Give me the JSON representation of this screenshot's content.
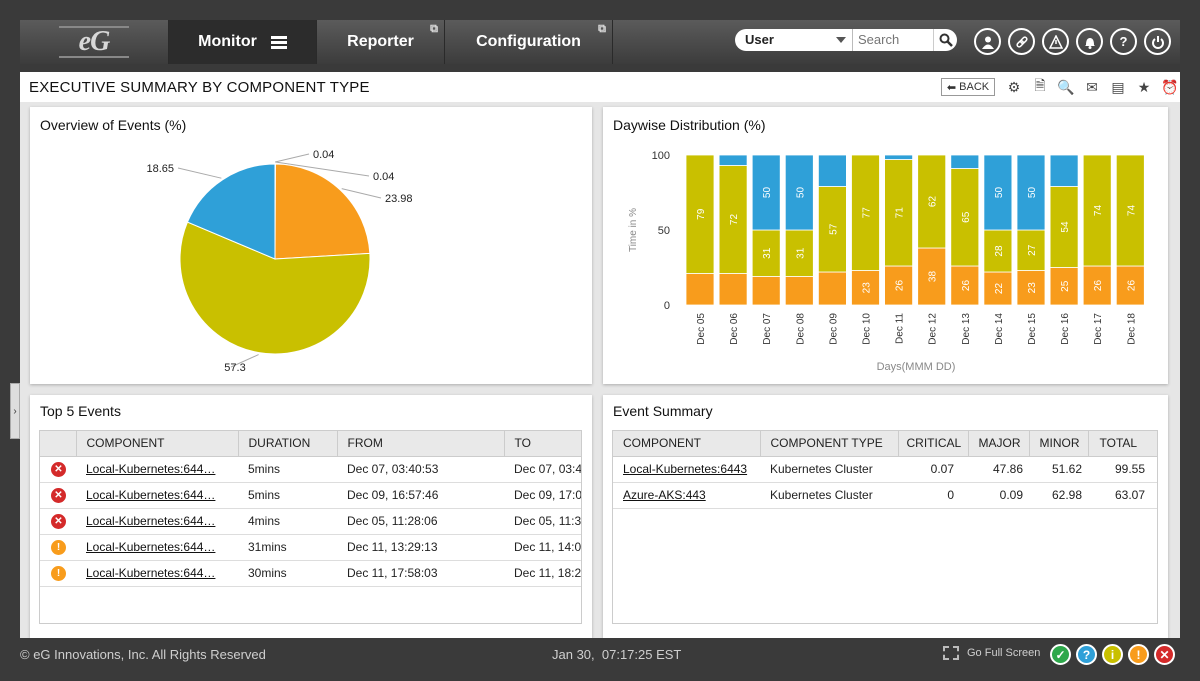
{
  "nav": {
    "logo_text": "eG",
    "tabs": [
      {
        "label": "Monitor"
      },
      {
        "label": "Reporter"
      },
      {
        "label": "Configuration"
      }
    ],
    "user_select": "User",
    "search_placeholder": "Search",
    "icons": [
      "user-icon",
      "link-icon",
      "alert-icon",
      "bell-icon",
      "help-icon",
      "power-icon"
    ]
  },
  "titlebar": {
    "title": "EXECUTIVE SUMMARY BY COMPONENT TYPE",
    "back_label": "BACK",
    "tools": [
      "settings-icon",
      "pdf-icon",
      "search-doc-icon",
      "mail-icon",
      "csv-icon",
      "star-icon",
      "alarm-icon"
    ]
  },
  "overview": {
    "title": "Overview of Events (%)",
    "chart_data": {
      "type": "pie",
      "slices": [
        {
          "label": "0.04",
          "value": 0.04,
          "color": "#d8d8d8"
        },
        {
          "label": "0.04",
          "value": 0.04,
          "color": "#cccccc"
        },
        {
          "label": "23.98",
          "value": 23.98,
          "color": "#f89c1c"
        },
        {
          "label": "57.3",
          "value": 57.3,
          "color": "#c9c000"
        },
        {
          "label": "18.65",
          "value": 18.65,
          "color": "#2fa0d8"
        }
      ]
    }
  },
  "daywise": {
    "title": "Daywise Distribution (%)",
    "chart_data": {
      "type": "bar",
      "stacked": true,
      "ylabel": "Time in %",
      "xlabel": "Days(MMM DD)",
      "ylim": [
        0,
        100
      ],
      "yticks": [
        "0",
        "50",
        "100"
      ],
      "categories": [
        "Dec 05",
        "Dec 06",
        "Dec 07",
        "Dec 08",
        "Dec 09",
        "Dec 10",
        "Dec 11",
        "Dec 12",
        "Dec 13",
        "Dec 14",
        "Dec 15",
        "Dec 16",
        "Dec 17",
        "Dec 18"
      ],
      "series": [
        {
          "color": "#f89c1c",
          "values": [
            21,
            21,
            19,
            19,
            22,
            23,
            26,
            38,
            26,
            22,
            23,
            25,
            26,
            26
          ],
          "labels": [
            "",
            "",
            "",
            "",
            "",
            "23",
            "26",
            "38",
            "26",
            "22",
            "23",
            "25",
            "26",
            "26"
          ]
        },
        {
          "color": "#c9c000",
          "values": [
            79,
            72,
            31,
            31,
            57,
            77,
            71,
            62,
            65,
            28,
            27,
            54,
            74,
            74
          ],
          "labels": [
            "79",
            "72",
            "31",
            "31",
            "57",
            "77",
            "71",
            "62",
            "65",
            "28",
            "27",
            "54",
            "74",
            "74"
          ]
        },
        {
          "color": "#2fa0d8",
          "values": [
            0,
            7,
            50,
            50,
            21,
            0,
            3,
            0,
            9,
            50,
            50,
            21,
            0,
            0
          ],
          "labels": [
            "",
            "",
            "50",
            "50",
            "",
            "",
            "",
            "",
            "",
            "50",
            "50",
            "",
            "",
            ""
          ]
        }
      ]
    }
  },
  "top5": {
    "title": "Top 5 Events",
    "headers": [
      "COMPONENT",
      "DURATION",
      "FROM",
      "TO"
    ],
    "rows": [
      {
        "sev": "critical",
        "component": "Local-Kubernetes:644…",
        "duration": "5mins",
        "from": "Dec 07, 03:40:53",
        "to": "Dec 07, 03:4"
      },
      {
        "sev": "critical",
        "component": "Local-Kubernetes:644…",
        "duration": "5mins",
        "from": "Dec 09, 16:57:46",
        "to": "Dec 09, 17:0"
      },
      {
        "sev": "critical",
        "component": "Local-Kubernetes:644…",
        "duration": "4mins",
        "from": "Dec 05, 11:28:06",
        "to": "Dec 05, 11:3"
      },
      {
        "sev": "major",
        "component": "Local-Kubernetes:644…",
        "duration": "31mins",
        "from": "Dec 11, 13:29:13",
        "to": "Dec 11, 14:0"
      },
      {
        "sev": "major",
        "component": "Local-Kubernetes:644…",
        "duration": "30mins",
        "from": "Dec 11, 17:58:03",
        "to": "Dec 11, 18:2"
      }
    ]
  },
  "summary": {
    "title": "Event Summary",
    "headers": [
      "COMPONENT",
      "COMPONENT TYPE",
      "CRITICAL",
      "MAJOR",
      "MINOR",
      "TOTAL"
    ],
    "rows": [
      {
        "component": "Local-Kubernetes:6443",
        "type": "Kubernetes Cluster",
        "critical": "0.07",
        "major": "47.86",
        "minor": "51.62",
        "total": "99.55"
      },
      {
        "component": "Azure-AKS:443",
        "type": "Kubernetes Cluster",
        "critical": "0",
        "major": "0.09",
        "minor": "62.98",
        "total": "63.07"
      }
    ]
  },
  "footer": {
    "copyright": "© eG Innovations, Inc. All Rights Reserved",
    "datetime": "Jan 30,  07:17:25 EST",
    "fullscreen": "Go Full Screen",
    "status": [
      {
        "name": "normal-icon",
        "glyph": "✓",
        "color": "#2ea84b"
      },
      {
        "name": "unknown-icon",
        "glyph": "?",
        "color": "#2fa0d8"
      },
      {
        "name": "info-icon",
        "glyph": "i",
        "color": "#c9c000"
      },
      {
        "name": "warning-icon",
        "glyph": "!",
        "color": "#f89c1c"
      },
      {
        "name": "critical-icon",
        "glyph": "✕",
        "color": "#d42a2a"
      }
    ]
  }
}
